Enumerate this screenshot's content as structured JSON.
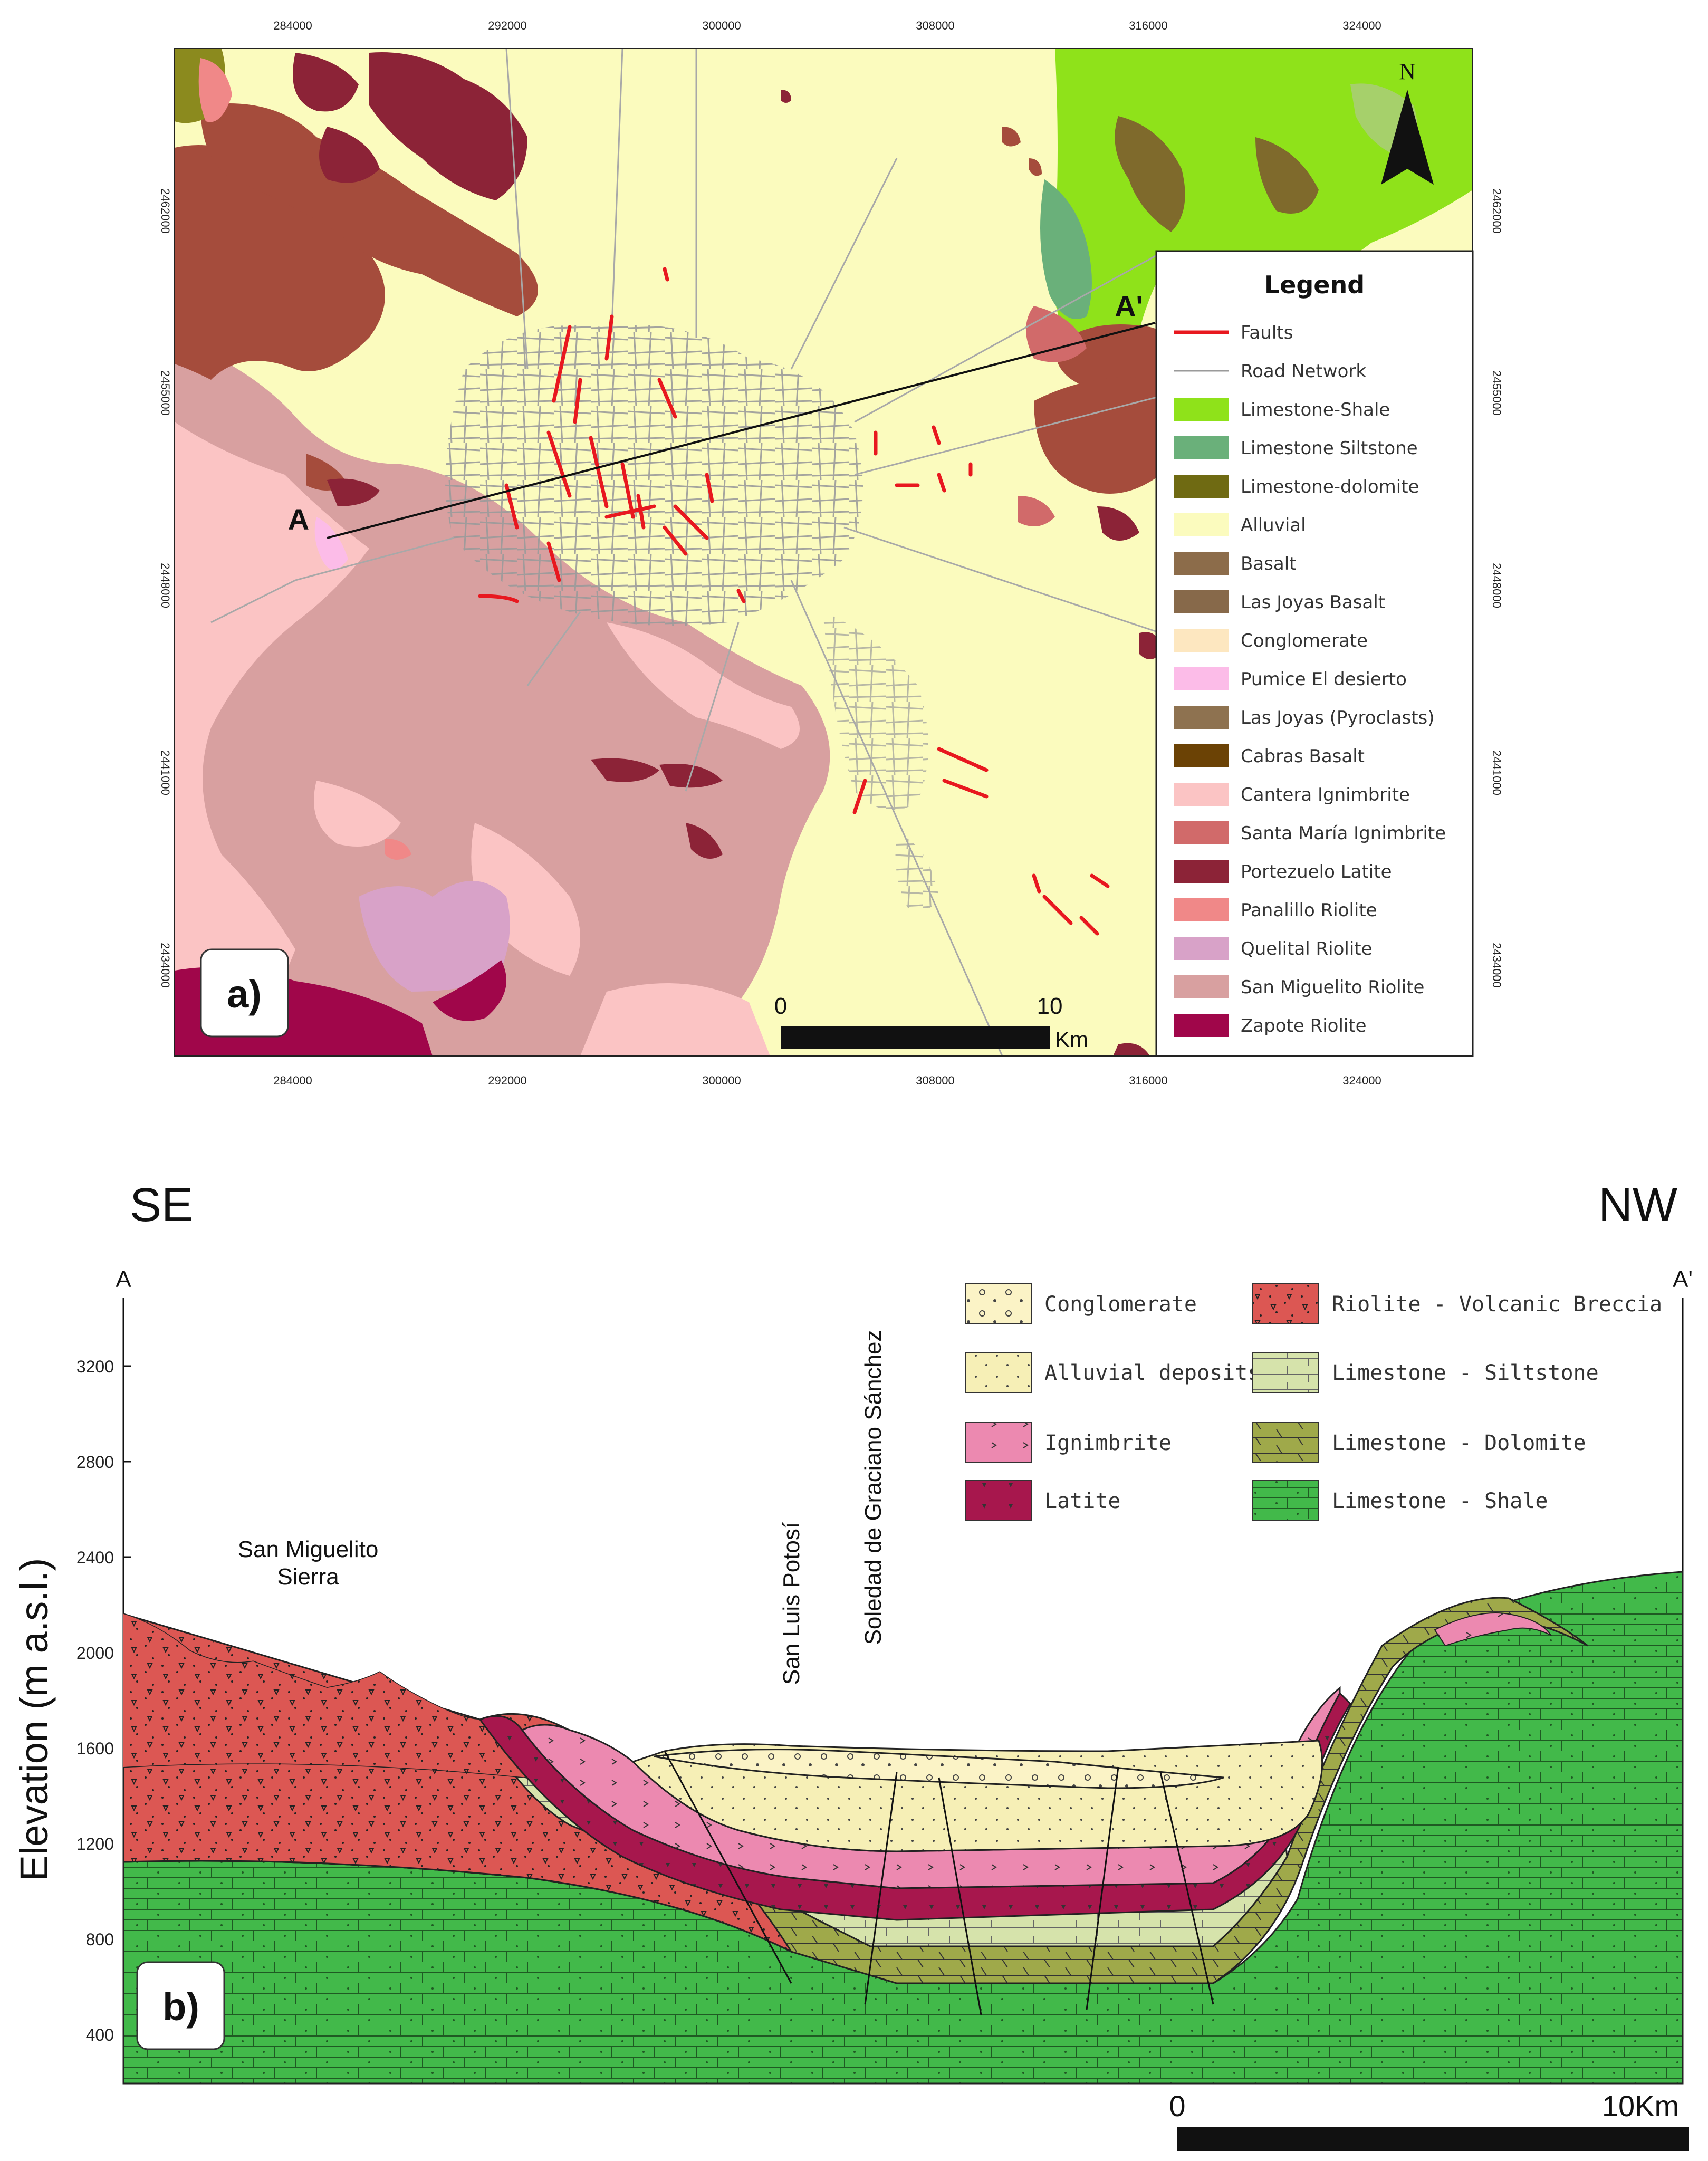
{
  "map": {
    "top_ticks": [
      "284000",
      "292000",
      "300000",
      "308000",
      "316000",
      "324000"
    ],
    "bottom_ticks": [
      "284000",
      "292000",
      "300000",
      "308000",
      "316000",
      "324000"
    ],
    "left_ticks": [
      "2462000",
      "2455000",
      "2448000",
      "2441000",
      "2434000"
    ],
    "right_ticks": [
      "2462000",
      "2455000",
      "2448000",
      "2441000",
      "2434000"
    ],
    "north_label": "N",
    "point_a": "A",
    "point_a_prime": "A'",
    "panel_label": "a)",
    "scale": {
      "start": "0",
      "mid": "10",
      "unit": "Km"
    },
    "legend": {
      "title": "Legend",
      "items": [
        {
          "label": "Faults",
          "color": "#e8181f",
          "kind": "line"
        },
        {
          "label": "Road Network",
          "color": "#9a9a9a",
          "kind": "line"
        },
        {
          "label": "Limestone-Shale",
          "color": "#8fe21a",
          "kind": "box"
        },
        {
          "label": "Limestone Siltstone",
          "color": "#6ab07a",
          "kind": "box"
        },
        {
          "label": "Limestone-dolomite",
          "color": "#6f6a12",
          "kind": "box"
        },
        {
          "label": "Alluvial",
          "color": "#fbfbbe",
          "kind": "box"
        },
        {
          "label": "Basalt",
          "color": "#8c6c4a",
          "kind": "box"
        },
        {
          "label": "Las Joyas Basalt",
          "color": "#87694a",
          "kind": "box"
        },
        {
          "label": "Conglomerate",
          "color": "#fde7c0",
          "kind": "box"
        },
        {
          "label": "Pumice El desierto",
          "color": "#fcbce8",
          "kind": "box"
        },
        {
          "label": "Las Joyas (Pyroclasts)",
          "color": "#8e7250",
          "kind": "box"
        },
        {
          "label": "Cabras Basalt",
          "color": "#6b4205",
          "kind": "box"
        },
        {
          "label": "Cantera Ignimbrite",
          "color": "#fbc4c4",
          "kind": "box"
        },
        {
          "label": "Santa María Ignimbrite",
          "color": "#d16a6a",
          "kind": "box"
        },
        {
          "label": "Portezuelo Latite",
          "color": "#8c2337",
          "kind": "box"
        },
        {
          "label": "Panalillo Riolite",
          "color": "#f08888",
          "kind": "box"
        },
        {
          "label": "Quelital Riolite",
          "color": "#d8a2c8",
          "kind": "box"
        },
        {
          "label": "San Miguelito Riolite",
          "color": "#d8a0a0",
          "kind": "box"
        },
        {
          "label": "Zapote Riolite",
          "color": "#a0064a",
          "kind": "box"
        }
      ]
    }
  },
  "section": {
    "left_direction": "SE",
    "right_direction": "NW",
    "left_point": "A",
    "right_point": "A'",
    "ylabel": "Elevation  (m  a.s.l.)",
    "y_ticks": [
      "3200",
      "2800",
      "2400",
      "2000",
      "1600",
      "1200",
      "800",
      "400"
    ],
    "labels": {
      "sierra_line1": "San Miguelito",
      "sierra_line2": "Sierra",
      "city1": "San Luis Potosí",
      "city2": "Soledad de Graciano Sánchez"
    },
    "panel_label": "b)",
    "scale": {
      "start": "0",
      "end": "10Km"
    },
    "legend": [
      {
        "label": "Conglomerate",
        "color": "#fbf3c6"
      },
      {
        "label": "Alluvial  deposits",
        "color": "#f6efb6"
      },
      {
        "label": "Ignimbrite",
        "color": "#ec89b0"
      },
      {
        "label": "Latite",
        "color": "#a7174d"
      },
      {
        "label": "Riolite  -  Volcanic  Breccia",
        "color": "#dc5753"
      },
      {
        "label": "Limestone  -  Siltstone",
        "color": "#d6e3ab"
      },
      {
        "label": "Limestone  -  Dolomite",
        "color": "#9fa94a"
      },
      {
        "label": "Limestone  -  Shale",
        "color": "#42b94a"
      }
    ]
  }
}
